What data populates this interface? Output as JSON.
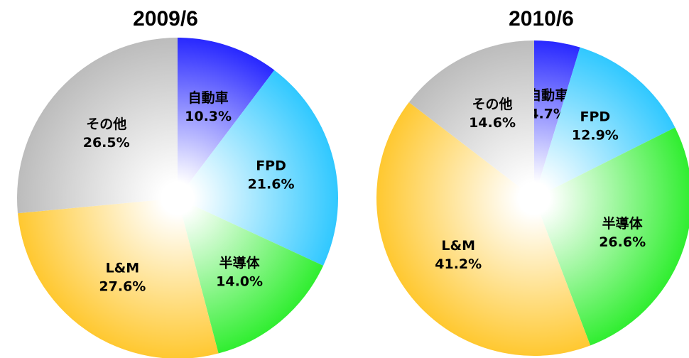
{
  "chart_data": [
    {
      "type": "pie",
      "title": "2009/6",
      "categories": [
        "自動車",
        "FPD",
        "半導体",
        "L&M",
        "その他"
      ],
      "values": [
        10.3,
        21.6,
        14.0,
        27.6,
        26.5
      ],
      "value_labels": [
        "10.3%",
        "21.6%",
        "14.0%",
        "27.6%",
        "26.5%"
      ],
      "colors": [
        "#2828ff",
        "#30c8ff",
        "#30ee30",
        "#ffc830",
        "#bcbcbc"
      ]
    },
    {
      "type": "pie",
      "title": "2010/6",
      "categories": [
        "自動車",
        "FPD",
        "半導体",
        "L&M",
        "その他"
      ],
      "values": [
        4.7,
        12.9,
        26.6,
        41.2,
        14.6
      ],
      "value_labels": [
        "4.7%",
        "12.9%",
        "26.6%",
        "41.2%",
        "14.6%"
      ],
      "colors": [
        "#2828ff",
        "#30c8ff",
        "#30ee30",
        "#ffc830",
        "#bcbcbc"
      ]
    }
  ]
}
